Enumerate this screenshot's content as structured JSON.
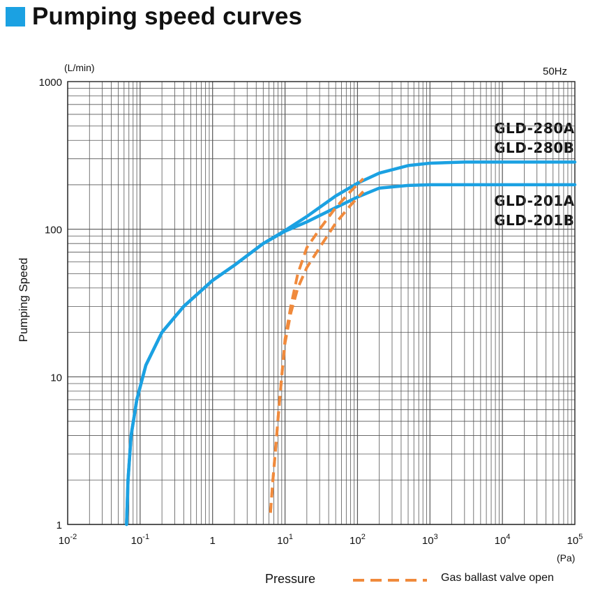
{
  "title": "Pumping speed curves",
  "colors": {
    "accent": "#1ba1e2",
    "curve": "#1ba1e2",
    "gas_ballast": "#f08a3c",
    "grid": "#555555"
  },
  "chart_data": {
    "type": "line",
    "title": "Pumping speed curves",
    "frequency": "50Hz",
    "xlabel": "Pressure",
    "xunit": "(Pa)",
    "ylabel": "Pumping Speed",
    "yunit": "(L/min)",
    "xscale": "log",
    "yscale": "log",
    "xlim": [
      0.01,
      100000
    ],
    "ylim": [
      1,
      1000
    ],
    "grid": true,
    "x_ticks": [
      {
        "base": "10",
        "exp": "-2"
      },
      {
        "base": "10",
        "exp": "-1"
      },
      {
        "base": "1",
        "exp": ""
      },
      {
        "base": "10",
        "exp": "1"
      },
      {
        "base": "10",
        "exp": "2"
      },
      {
        "base": "10",
        "exp": "3"
      },
      {
        "base": "10",
        "exp": "4"
      },
      {
        "base": "10",
        "exp": "5"
      }
    ],
    "y_ticks": [
      "1",
      "10",
      "100",
      "1000"
    ],
    "series": [
      {
        "name": "GLD-280A / GLD-280B",
        "style": "solid",
        "x": [
          0.065,
          0.068,
          0.075,
          0.09,
          0.12,
          0.2,
          0.4,
          1,
          2,
          5,
          10,
          20,
          50,
          100,
          200,
          500,
          1000,
          3000,
          100000
        ],
        "y": [
          1,
          2,
          4,
          7,
          12,
          20,
          30,
          45,
          57,
          80,
          98,
          122,
          168,
          205,
          240,
          270,
          280,
          285,
          285
        ]
      },
      {
        "name": "GLD-201A / GLD-201B",
        "style": "solid",
        "x": [
          0.065,
          0.068,
          0.075,
          0.09,
          0.12,
          0.2,
          0.4,
          1,
          2,
          5,
          10,
          20,
          50,
          100,
          200,
          500,
          1000,
          100000
        ],
        "y": [
          1,
          2,
          4,
          7,
          12,
          20,
          30,
          45,
          57,
          80,
          97,
          112,
          140,
          165,
          190,
          198,
          200,
          200
        ]
      },
      {
        "name": "Gas ballast valve open (GLD-280)",
        "style": "dashed",
        "x": [
          6.3,
          6.8,
          7.5,
          8.2,
          9,
          10,
          12,
          15,
          20,
          30,
          50,
          80,
          120
        ],
        "y": [
          1.2,
          2,
          3.5,
          6,
          10,
          18,
          30,
          50,
          75,
          100,
          140,
          180,
          220
        ]
      },
      {
        "name": "Gas ballast valve open (GLD-201)",
        "style": "dashed",
        "x": [
          6.3,
          6.8,
          7.5,
          8.2,
          9,
          10,
          12,
          15,
          20,
          30,
          50,
          80,
          120
        ],
        "y": [
          1.2,
          2,
          3.5,
          6,
          10,
          17,
          27,
          40,
          55,
          75,
          110,
          145,
          180
        ]
      }
    ],
    "series_labels": [
      {
        "line1": "GLD-280A",
        "line2": "GLD-280B"
      },
      {
        "line1": "GLD-201A",
        "line2": "GLD-201B"
      }
    ],
    "legend": {
      "label": "Gas ballast valve open",
      "placement": "bottom-right"
    }
  }
}
